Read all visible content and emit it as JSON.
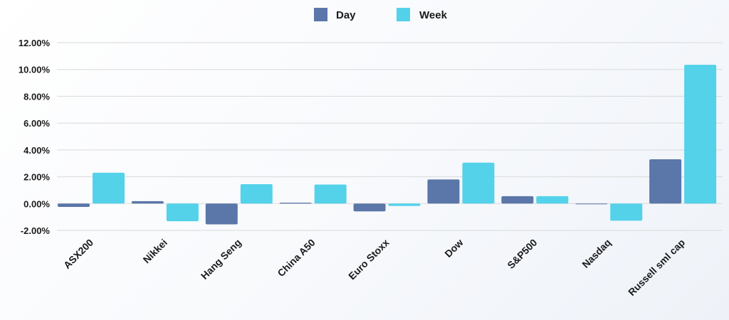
{
  "chart_data": {
    "type": "bar",
    "title": "",
    "xlabel": "",
    "ylabel": "",
    "categories": [
      "ASX200",
      "Nikkei",
      "Hang Seng",
      "China A50",
      "Euro Stoxx",
      "Dow",
      "S&P500",
      "Nasdaq",
      "Russell sml cap"
    ],
    "series": [
      {
        "name": "Day",
        "color": "#5b76a8",
        "values": [
          -0.25,
          0.18,
          -1.55,
          0.07,
          -0.58,
          1.8,
          0.55,
          -0.05,
          3.3
        ]
      },
      {
        "name": "Week",
        "color": "#53d2ea",
        "values": [
          2.3,
          -1.32,
          1.45,
          1.42,
          -0.18,
          3.05,
          0.55,
          -1.28,
          10.35
        ]
      }
    ],
    "ylim": [
      -2,
      12
    ],
    "yticks": [
      -2,
      0,
      2,
      4,
      6,
      8,
      10,
      12
    ],
    "ytick_labels": [
      "-2.00%",
      "0.00%",
      "2.00%",
      "4.00%",
      "6.00%",
      "8.00%",
      "10.00%",
      "12.00%"
    ],
    "grid": true,
    "legend_position": "top-center"
  }
}
